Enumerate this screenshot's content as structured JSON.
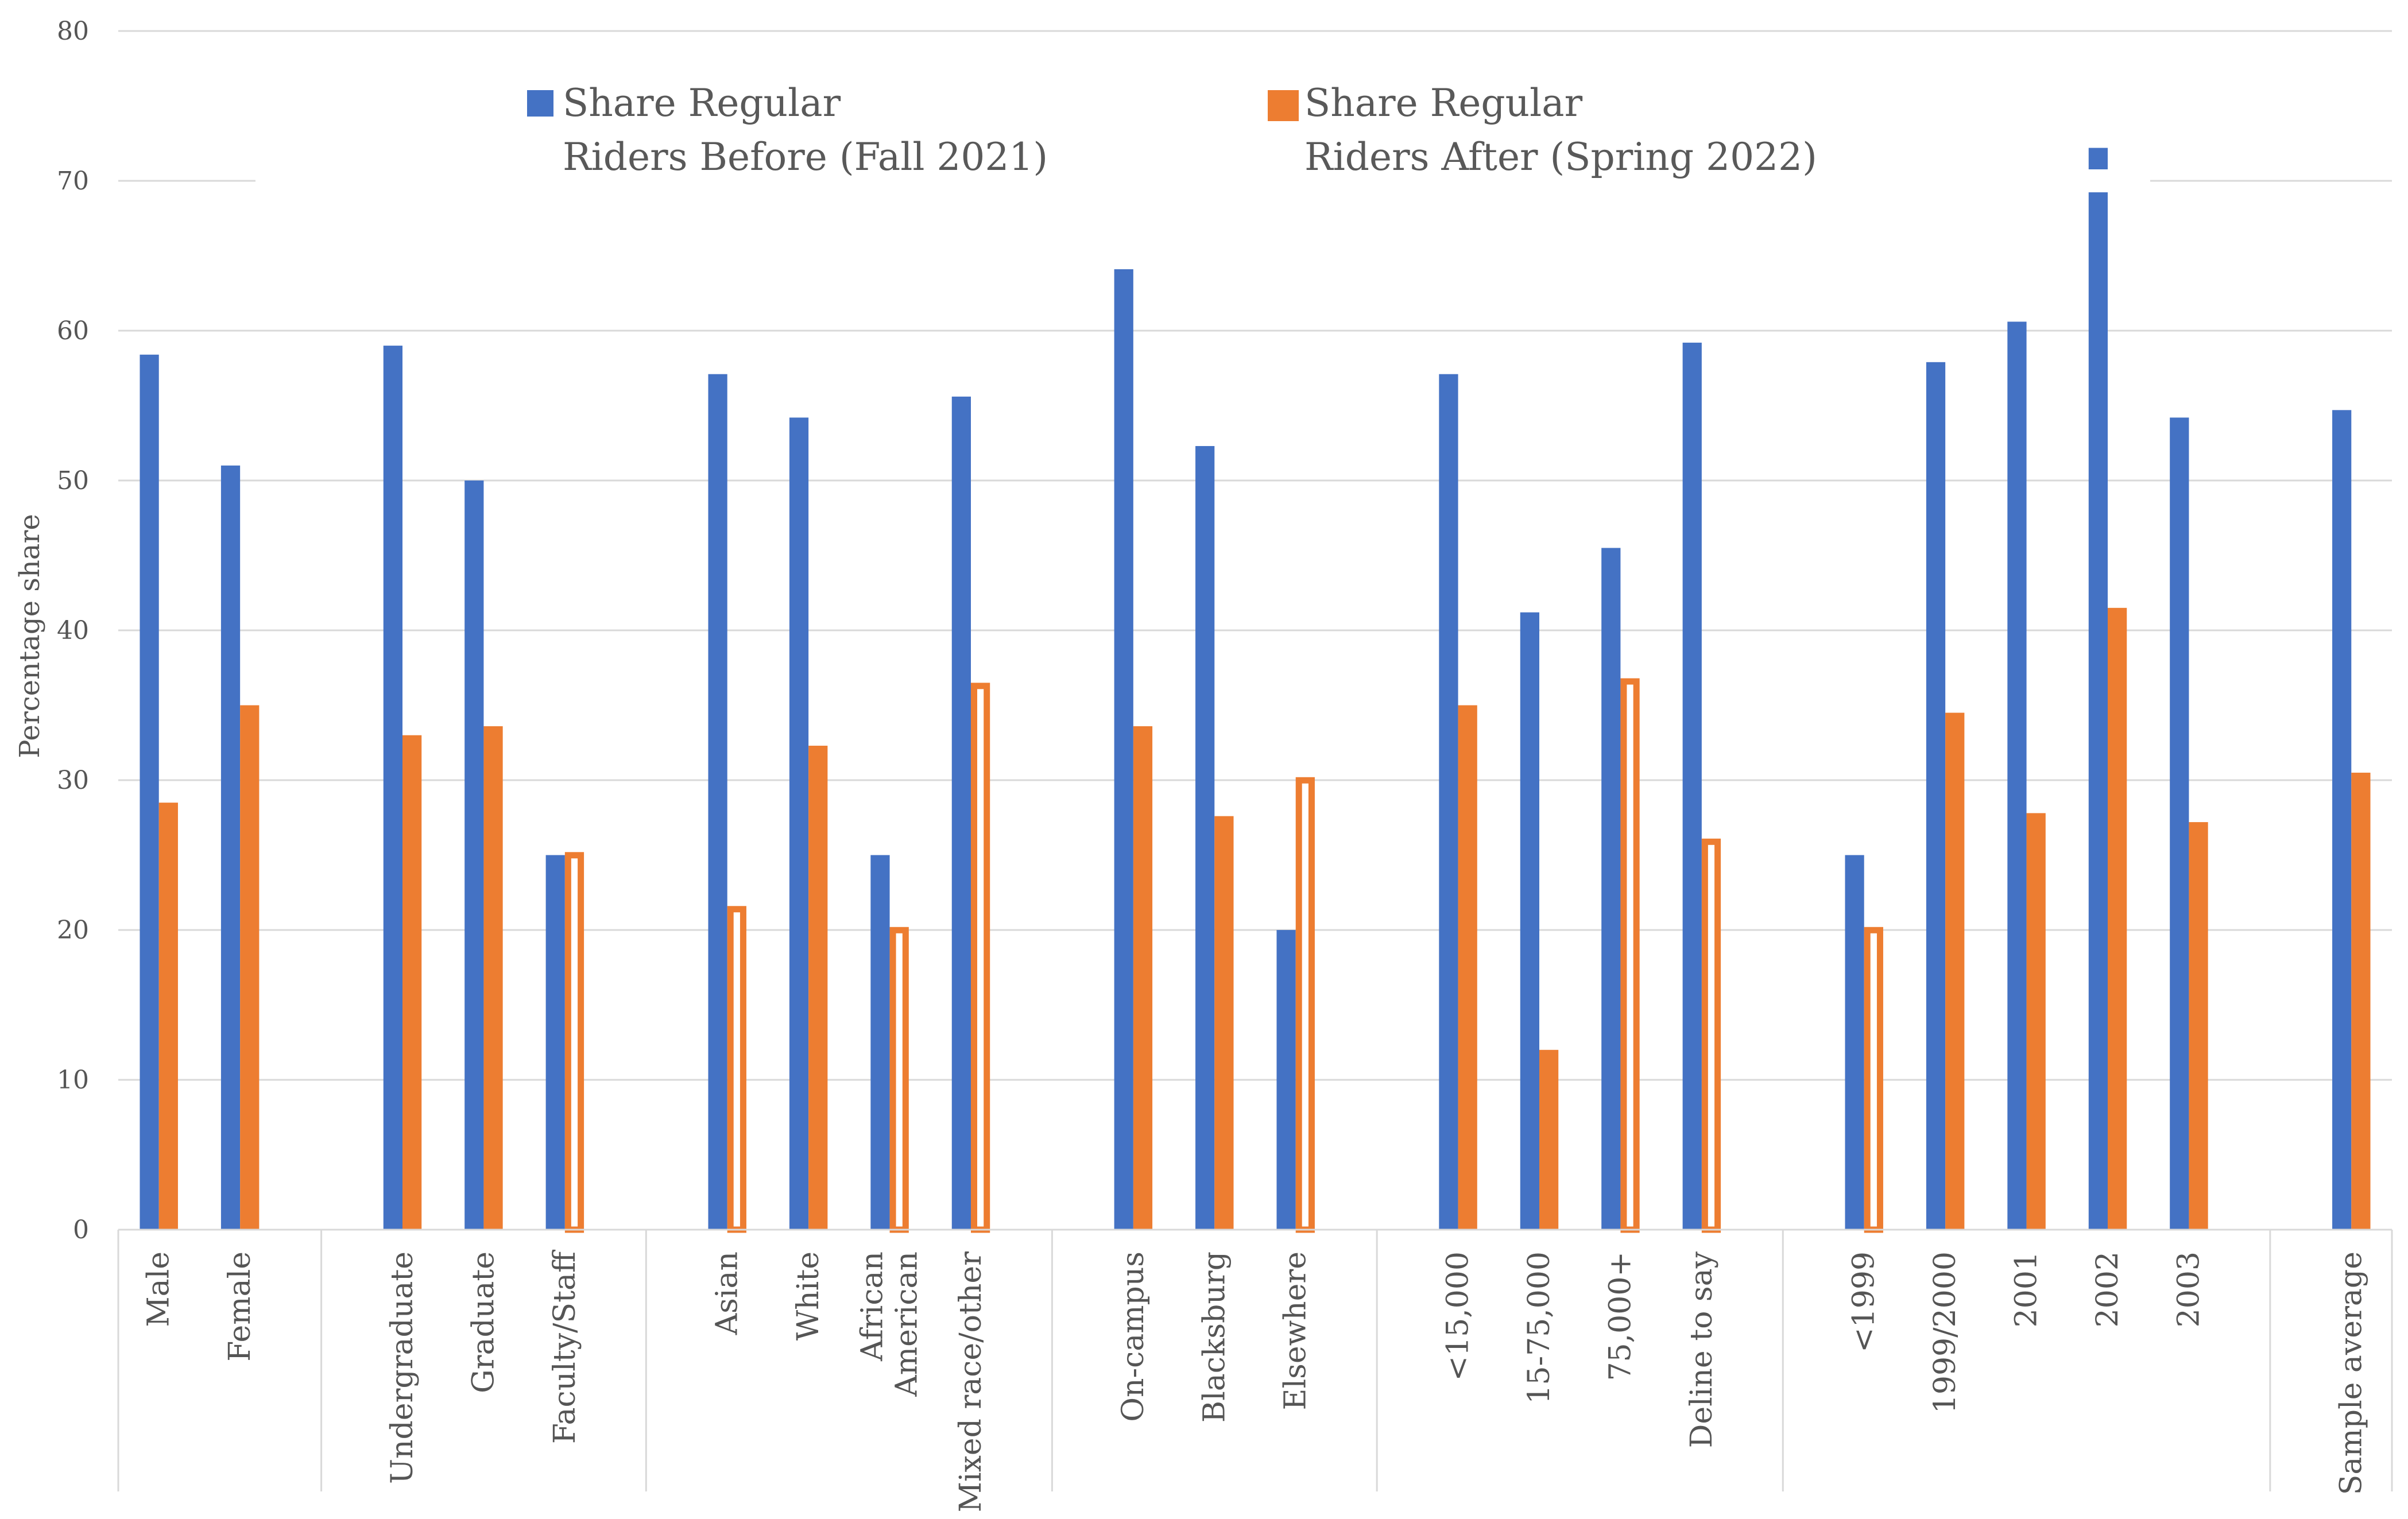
{
  "chart_data": {
    "type": "bar",
    "title": "",
    "xlabel": "",
    "ylabel": "Percentage share",
    "ylim": [
      0,
      80
    ],
    "yticks": [
      "0",
      "10",
      "20",
      "30",
      "40",
      "50",
      "60",
      "70",
      "80"
    ],
    "grid": true,
    "legend_position": "top",
    "colors": {
      "before": "#4472C4",
      "after": "#ED7D31",
      "grid": "#D9D9D9",
      "text": "#595959"
    },
    "series": [
      {
        "name": "Share Regular Riders Before (Fall 2021)",
        "legend_lines": [
          "Share Regular",
          "Riders Before (Fall 2021)"
        ],
        "color": "#4472C4"
      },
      {
        "name": "Share Regular Riders After (Spring 2022)",
        "legend_lines": [
          "Share Regular",
          "Riders After (Spring 2022)"
        ],
        "color": "#ED7D31"
      }
    ],
    "groups": [
      {
        "categories": [
          {
            "label": [
              "Male"
            ],
            "before": 58.4,
            "after": 28.5,
            "after_hollow": false
          },
          {
            "label": [
              "Female"
            ],
            "before": 51.0,
            "after": 35.0,
            "after_hollow": false
          }
        ]
      },
      {
        "categories": [
          {
            "label": [
              "Undergraduate"
            ],
            "before": 59.0,
            "after": 33.0,
            "after_hollow": false
          },
          {
            "label": [
              "Graduate"
            ],
            "before": 50.0,
            "after": 33.6,
            "after_hollow": false
          },
          {
            "label": [
              "Faculty/Staff"
            ],
            "before": 25.0,
            "after": 25.2,
            "after_hollow": true
          }
        ]
      },
      {
        "categories": [
          {
            "label": [
              "Asian"
            ],
            "before": 57.1,
            "after": 21.6,
            "after_hollow": true
          },
          {
            "label": [
              "White"
            ],
            "before": 54.2,
            "after": 32.3,
            "after_hollow": false
          },
          {
            "label": [
              "African",
              "American"
            ],
            "before": 25.0,
            "after": 20.2,
            "after_hollow": true
          },
          {
            "label": [
              "Mixed race/other"
            ],
            "before": 55.6,
            "after": 36.5,
            "after_hollow": true
          }
        ]
      },
      {
        "categories": [
          {
            "label": [
              "On-campus"
            ],
            "before": 64.1,
            "after": 33.6,
            "after_hollow": false
          },
          {
            "label": [
              "Blacksburg"
            ],
            "before": 52.3,
            "after": 27.6,
            "after_hollow": false
          },
          {
            "label": [
              "Elsewhere"
            ],
            "before": 20.0,
            "after": 30.2,
            "after_hollow": true
          }
        ]
      },
      {
        "categories": [
          {
            "label": [
              "<15,000"
            ],
            "before": 57.1,
            "after": 35.0,
            "after_hollow": false
          },
          {
            "label": [
              "15-75,000"
            ],
            "before": 41.2,
            "after": 12.0,
            "after_hollow": false
          },
          {
            "label": [
              "75,000+"
            ],
            "before": 45.5,
            "after": 36.8,
            "after_hollow": true
          },
          {
            "label": [
              "Deline to say"
            ],
            "before": 59.2,
            "after": 26.1,
            "after_hollow": true
          }
        ]
      },
      {
        "categories": [
          {
            "label": [
              "<1999"
            ],
            "before": 25.0,
            "after": 20.2,
            "after_hollow": true
          },
          {
            "label": [
              "1999/2000"
            ],
            "before": 57.9,
            "after": 34.5,
            "after_hollow": false
          },
          {
            "label": [
              "2001"
            ],
            "before": 60.6,
            "after": 27.8,
            "after_hollow": false
          },
          {
            "label": [
              "2002"
            ],
            "before": 72.2,
            "after": 41.5,
            "after_hollow": false
          },
          {
            "label": [
              "2003"
            ],
            "before": 54.2,
            "after": 27.2,
            "after_hollow": false
          }
        ]
      },
      {
        "categories": [
          {
            "label": [
              "Sample average"
            ],
            "before": 54.7,
            "after": 30.5,
            "after_hollow": false
          }
        ]
      }
    ]
  }
}
